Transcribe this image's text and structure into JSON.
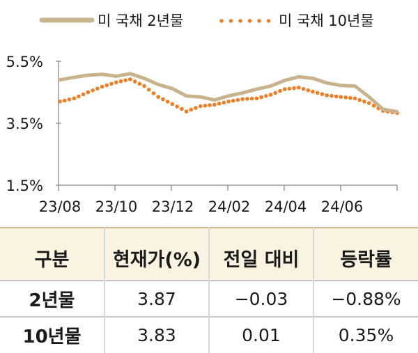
{
  "chart_data": {
    "type": "line",
    "legend_position": "top",
    "legend": [
      "미 국채 2년물",
      "미 국채 10년물"
    ],
    "y_ticks": [
      "5.5%",
      "3.5%",
      "1.5%"
    ],
    "ylim": [
      1.5,
      5.5
    ],
    "x_ticks": [
      "23/08",
      "23/10",
      "23/12",
      "24/02",
      "24/04",
      "24/06"
    ],
    "x_range": [
      "23/08",
      "24/08"
    ],
    "series": [
      {
        "name": "미 국채 2년물",
        "color": "#c8b38d",
        "style": "solid",
        "x": [
          0,
          0.5,
          1,
          1.5,
          2,
          2.5,
          3,
          3.5,
          4,
          4.5,
          5,
          5.5,
          6,
          6.5,
          7,
          7.5,
          8,
          8.5,
          9,
          9.5,
          10,
          10.5,
          11,
          11.5,
          12
        ],
        "values": [
          4.9,
          4.98,
          5.05,
          5.08,
          5.02,
          5.1,
          4.95,
          4.75,
          4.62,
          4.38,
          4.35,
          4.25,
          4.38,
          4.48,
          4.6,
          4.7,
          4.88,
          5.0,
          4.95,
          4.8,
          4.72,
          4.7,
          4.35,
          3.95,
          3.87
        ]
      },
      {
        "name": "미 국채 10년물",
        "color": "#ee7d23",
        "style": "dotted",
        "x": [
          0,
          0.5,
          1,
          1.5,
          2,
          2.5,
          3,
          3.5,
          4,
          4.5,
          5,
          5.5,
          6,
          6.5,
          7,
          7.5,
          8,
          8.5,
          9,
          9.5,
          10,
          10.5,
          11,
          11.5,
          12
        ],
        "values": [
          4.2,
          4.3,
          4.5,
          4.68,
          4.82,
          4.92,
          4.7,
          4.35,
          4.12,
          3.88,
          4.05,
          4.1,
          4.2,
          4.28,
          4.3,
          4.42,
          4.6,
          4.65,
          4.52,
          4.4,
          4.35,
          4.3,
          4.15,
          3.9,
          3.83
        ]
      }
    ]
  },
  "table": {
    "headers": [
      "구분",
      "현재가(%)",
      "전일 대비",
      "등락률"
    ],
    "rows": [
      [
        "2년물",
        "3.87",
        "−0.03",
        "−0.88%"
      ],
      [
        "10년물",
        "3.83",
        "0.01",
        "0.35%"
      ]
    ]
  }
}
